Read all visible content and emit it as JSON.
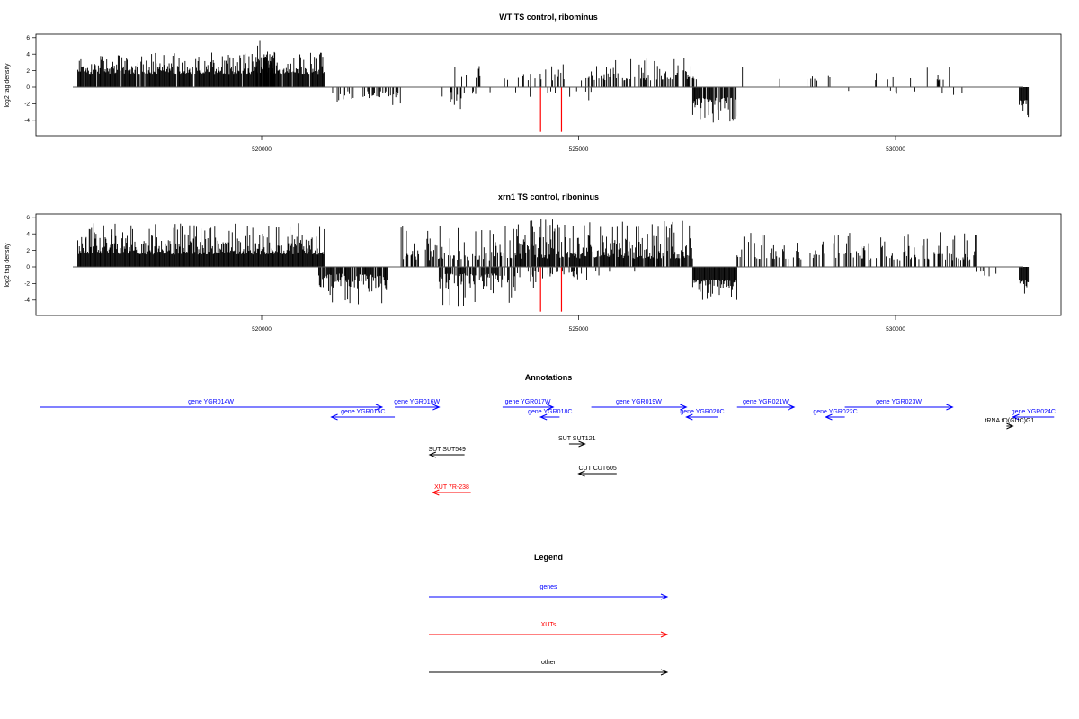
{
  "chart_data": [
    {
      "type": "bar",
      "title": "WT TS control, ribominus",
      "ylabel": "log2 tag density",
      "xlabel": "",
      "xlim": [
        517000,
        532500
      ],
      "ylim": [
        -5.5,
        6.5
      ],
      "yticks": [
        6,
        4,
        2,
        0,
        -2,
        -4
      ],
      "xticks": [
        520000,
        525000,
        530000
      ],
      "xtick_labels": [
        "520000",
        "525000",
        "530000"
      ],
      "grid": false,
      "highlight_positions": [
        524400,
        524730
      ],
      "highlight_color": "#ff0000",
      "density_profile": [
        {
          "range": [
            517100,
            521000
          ],
          "sign": "pos",
          "density": 0.95,
          "amp": [
            1.6,
            4.2
          ]
        },
        {
          "range": [
            519900,
            520200
          ],
          "sign": "pos",
          "density": 0.9,
          "amp": [
            3,
            5.7
          ]
        },
        {
          "range": [
            521000,
            522200
          ],
          "sign": "neg",
          "density": 0.35,
          "amp": [
            0.5,
            2.3
          ]
        },
        {
          "range": [
            522700,
            523700
          ],
          "sign": "pos",
          "density": 0.08,
          "amp": [
            1,
            2.6
          ]
        },
        {
          "range": [
            522800,
            523700
          ],
          "sign": "neg",
          "density": 0.15,
          "amp": [
            0.5,
            2.9
          ]
        },
        {
          "range": [
            523700,
            525200
          ],
          "sign": "pos",
          "density": 0.18,
          "amp": [
            0.8,
            3.8
          ]
        },
        {
          "range": [
            523900,
            525200
          ],
          "sign": "neg",
          "density": 0.08,
          "amp": [
            0.5,
            1.8
          ]
        },
        {
          "range": [
            525200,
            526900
          ],
          "sign": "pos",
          "density": 0.5,
          "amp": [
            0.8,
            3.6
          ]
        },
        {
          "range": [
            526800,
            527500
          ],
          "sign": "neg",
          "density": 0.9,
          "amp": [
            1.2,
            4.3
          ]
        },
        {
          "range": [
            527500,
            531500
          ],
          "sign": "pos",
          "density": 0.06,
          "amp": [
            0.8,
            2.8
          ]
        },
        {
          "range": [
            529200,
            531100
          ],
          "sign": "neg",
          "density": 0.05,
          "amp": [
            0.4,
            1.0
          ]
        },
        {
          "range": [
            531950,
            532100
          ],
          "sign": "neg",
          "density": 1.0,
          "amp": [
            1.5,
            3.9
          ]
        }
      ]
    },
    {
      "type": "bar",
      "title": "xrn1 TS control, riboninus",
      "ylabel": "log2 tag density",
      "xlabel": "",
      "xlim": [
        517000,
        532500
      ],
      "ylim": [
        -5.5,
        6.5
      ],
      "yticks": [
        6,
        4,
        2,
        0,
        -2,
        -4
      ],
      "xticks": [
        520000,
        525000,
        530000
      ],
      "xtick_labels": [
        "520000",
        "525000",
        "530000"
      ],
      "grid": false,
      "highlight_positions": [
        524400,
        524730
      ],
      "highlight_color": "#ff0000",
      "density_profile": [
        {
          "range": [
            517100,
            521000
          ],
          "sign": "pos",
          "density": 1.0,
          "amp": [
            1.5,
            5.3
          ]
        },
        {
          "range": [
            520900,
            522000
          ],
          "sign": "neg",
          "density": 0.9,
          "amp": [
            0.8,
            4.7
          ]
        },
        {
          "range": [
            522200,
            524000
          ],
          "sign": "pos",
          "density": 0.55,
          "amp": [
            0.8,
            5.0
          ]
        },
        {
          "range": [
            522800,
            524000
          ],
          "sign": "neg",
          "density": 0.6,
          "amp": [
            0.8,
            5.0
          ]
        },
        {
          "range": [
            524000,
            525200
          ],
          "sign": "pos",
          "density": 0.85,
          "amp": [
            1.0,
            5.8
          ]
        },
        {
          "range": [
            524000,
            525200
          ],
          "sign": "neg",
          "density": 0.3,
          "amp": [
            0.5,
            3.0
          ]
        },
        {
          "range": [
            525200,
            526800
          ],
          "sign": "pos",
          "density": 0.9,
          "amp": [
            1.0,
            5.6
          ]
        },
        {
          "range": [
            525200,
            526300
          ],
          "sign": "neg",
          "density": 0.08,
          "amp": [
            0.5,
            3.2
          ]
        },
        {
          "range": [
            526800,
            527500
          ],
          "sign": "neg",
          "density": 1.0,
          "amp": [
            1.5,
            4.2
          ]
        },
        {
          "range": [
            527500,
            531300
          ],
          "sign": "pos",
          "density": 0.4,
          "amp": [
            0.8,
            4.2
          ]
        },
        {
          "range": [
            531200,
            531600
          ],
          "sign": "neg",
          "density": 0.15,
          "amp": [
            0.5,
            2.0
          ]
        },
        {
          "range": [
            531950,
            532100
          ],
          "sign": "neg",
          "density": 1.0,
          "amp": [
            1.5,
            3.3
          ]
        }
      ]
    },
    {
      "type": "diagram",
      "title": "Annotations",
      "features": [
        {
          "label": "gene YGR014W",
          "start": 516500,
          "end": 521900,
          "strand": "+",
          "track": 0,
          "color": "#0000ff"
        },
        {
          "label": "gene YGR015C",
          "start": 521100,
          "end": 522100,
          "strand": "-",
          "track": 1,
          "color": "#0000ff"
        },
        {
          "label": "gene YGR016W",
          "start": 522100,
          "end": 522800,
          "strand": "+",
          "track": 0,
          "color": "#0000ff"
        },
        {
          "label": "gene YGR017W",
          "start": 523800,
          "end": 524600,
          "strand": "+",
          "track": 0,
          "color": "#0000ff"
        },
        {
          "label": "gene YGR018C",
          "start": 524400,
          "end": 524700,
          "strand": "-",
          "track": 1,
          "color": "#0000ff"
        },
        {
          "label": "gene YGR019W",
          "start": 525200,
          "end": 526700,
          "strand": "+",
          "track": 0,
          "color": "#0000ff"
        },
        {
          "label": "gene YGR020C",
          "start": 526700,
          "end": 527200,
          "strand": "-",
          "track": 1,
          "color": "#0000ff"
        },
        {
          "label": "gene YGR021W",
          "start": 527500,
          "end": 528400,
          "strand": "+",
          "track": 0,
          "color": "#0000ff"
        },
        {
          "label": "gene YGR022C",
          "start": 528900,
          "end": 529200,
          "strand": "-",
          "track": 1,
          "color": "#0000ff"
        },
        {
          "label": "gene YGR023W",
          "start": 529200,
          "end": 530900,
          "strand": "+",
          "track": 0,
          "color": "#0000ff"
        },
        {
          "label": "gene YGR024C",
          "start": 531850,
          "end": 532500,
          "strand": "-",
          "track": 1,
          "color": "#0000ff"
        },
        {
          "label": "tRNA tD(GUC)G1",
          "start": 531750,
          "end": 531850,
          "strand": "+",
          "track": 2,
          "color": "#000000"
        },
        {
          "label": "SUT SUT549",
          "start": 522650,
          "end": 523200,
          "strand": "-",
          "track": 4,
          "color": "#000000"
        },
        {
          "label": "SUT SUT121",
          "start": 524850,
          "end": 525100,
          "strand": "+",
          "track": 3,
          "color": "#000000"
        },
        {
          "label": "CUT CUT605",
          "start": 525000,
          "end": 525600,
          "strand": "-",
          "track": 6,
          "color": "#000000"
        },
        {
          "label": "XUT 7R-238",
          "start": 522700,
          "end": 523300,
          "strand": "-",
          "track": 8,
          "color": "#ff0000"
        }
      ]
    },
    {
      "type": "legend",
      "title": "Legend",
      "entries": [
        {
          "label": "genes",
          "color": "#0000ff"
        },
        {
          "label": "XUTs",
          "color": "#ff0000"
        },
        {
          "label": "other",
          "color": "#000000"
        }
      ]
    }
  ]
}
